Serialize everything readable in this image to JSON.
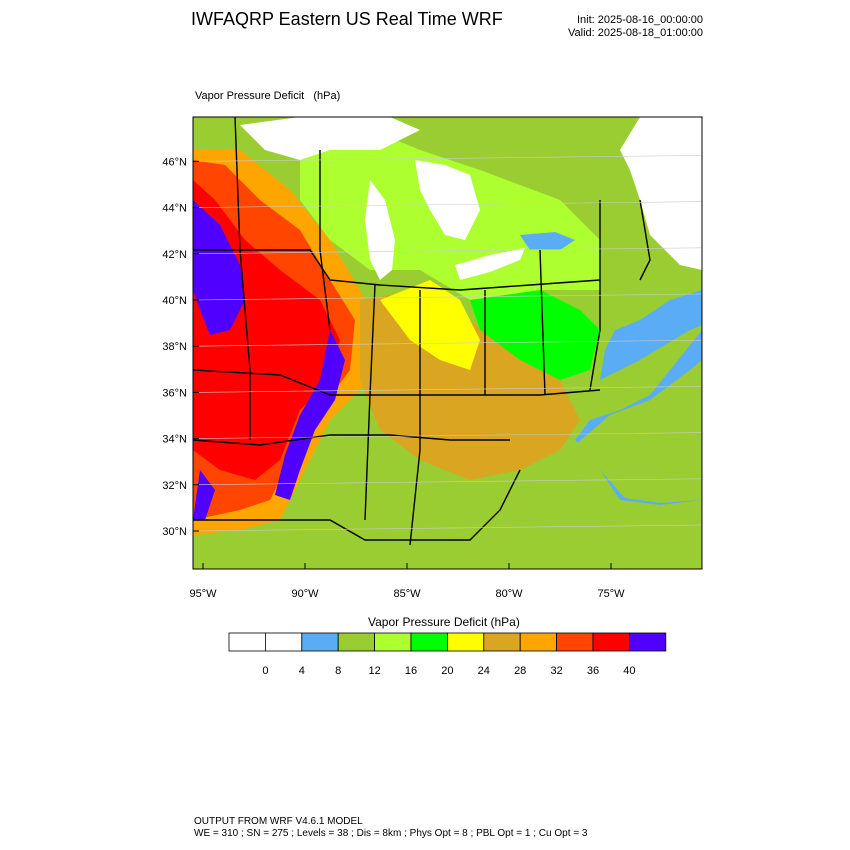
{
  "header": {
    "title": "IWFAQRP Eastern US Real Time WRF",
    "init": "Init: 2025-08-16_00:00:00",
    "valid": "Valid: 2025-08-18_01:00:00"
  },
  "field": {
    "label": "Vapor Pressure Deficit   (hPa)"
  },
  "map": {
    "lat_labels": [
      "30°N",
      "32°N",
      "34°N",
      "36°N",
      "38°N",
      "40°N",
      "42°N",
      "44°N",
      "46°N"
    ],
    "lat_values": [
      30,
      32,
      34,
      36,
      38,
      40,
      42,
      44,
      46
    ],
    "lon_labels": [
      "95°W",
      "90°W",
      "85°W",
      "80°W",
      "75°W"
    ],
    "lon_values": [
      -95,
      -90,
      -85,
      -80,
      -75
    ],
    "ocean_color": "#5aadf5",
    "gulf_color": "#9acd32",
    "lake_color": "#ffffff"
  },
  "colorbar": {
    "title": "Vapor Pressure Deficit  (hPa)",
    "colors": [
      "#ffffff",
      "#ffffff",
      "#5aadf5",
      "#9acd32",
      "#adff2f",
      "#00ff00",
      "#ffff00",
      "#daa520",
      "#ffa500",
      "#ff4500",
      "#ff0000",
      "#4f00ff"
    ],
    "tick_labels": [
      "0",
      "4",
      "8",
      "12",
      "16",
      "20",
      "24",
      "28",
      "32",
      "36",
      "40"
    ]
  },
  "footer": {
    "line1": "OUTPUT FROM WRF V4.6.1 MODEL",
    "line2": "WE = 310 ; SN = 275 ; Levels = 38 ; Dis = 8km ; Phys Opt = 8 ; PBL Opt = 1 ; Cu Opt = 3"
  }
}
